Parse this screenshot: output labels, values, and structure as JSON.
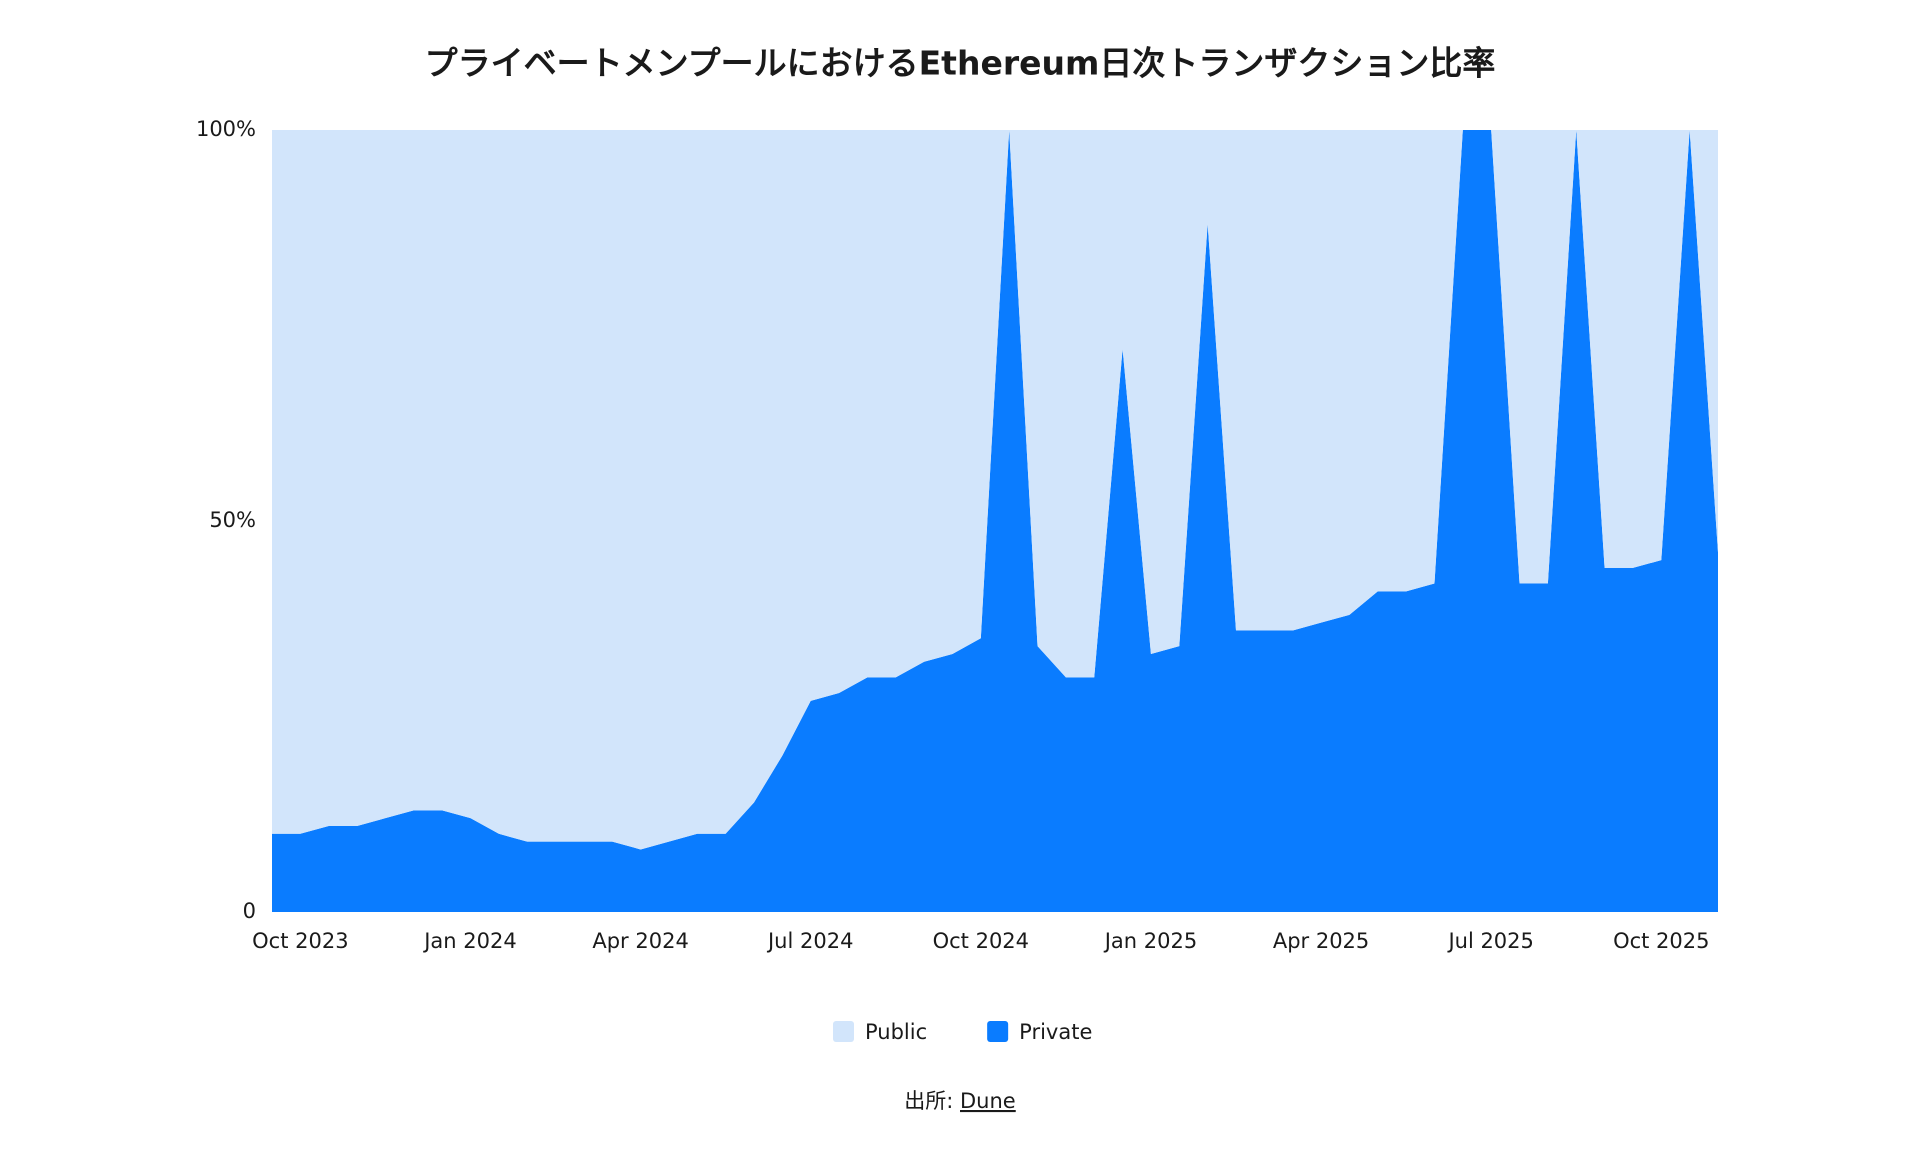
{
  "chart_data": {
    "type": "stacked_area",
    "title": "プライベートメンプールにおけるEthereum日次トランザクション比率",
    "categories": [
      null,
      "Oct 2023",
      null,
      null,
      null,
      null,
      null,
      "Jan 2024",
      null,
      null,
      null,
      null,
      null,
      "Apr 2024",
      null,
      null,
      null,
      null,
      null,
      "Jul 2024",
      null,
      null,
      null,
      null,
      null,
      "Oct 2024",
      null,
      null,
      null,
      null,
      null,
      "Jan 2025",
      null,
      null,
      null,
      null,
      null,
      "Apr 2025",
      null,
      null,
      null,
      null,
      null,
      "Jul 2025",
      null,
      null,
      null,
      null,
      null,
      "Oct 2025",
      null,
      null
    ],
    "series": [
      {
        "name": "Private",
        "color": "#0a7cff",
        "values": [
          10,
          10,
          11,
          11,
          12,
          13,
          13,
          12,
          10,
          9,
          9,
          9,
          9,
          8,
          9,
          10,
          10,
          14,
          20,
          27,
          28,
          30,
          30,
          32,
          33,
          35,
          100,
          34,
          30,
          30,
          72,
          33,
          34,
          88,
          36,
          36,
          36,
          37,
          38,
          41,
          41,
          42,
          100,
          100,
          42,
          42,
          100,
          44,
          44,
          45,
          100,
          46
        ]
      },
      {
        "name": "Public",
        "color": "#d2e5fb",
        "values": [
          90,
          90,
          89,
          89,
          88,
          87,
          87,
          88,
          90,
          91,
          91,
          91,
          91,
          92,
          91,
          90,
          90,
          86,
          80,
          73,
          72,
          70,
          70,
          68,
          67,
          65,
          0,
          66,
          70,
          70,
          28,
          67,
          66,
          12,
          64,
          64,
          64,
          63,
          62,
          59,
          59,
          58,
          0,
          0,
          58,
          58,
          0,
          56,
          56,
          55,
          0,
          54
        ]
      }
    ],
    "ylim": [
      0,
      100
    ],
    "yticks": [
      0,
      {
        "value": 50,
        "label": "50%"
      },
      {
        "value": 100,
        "label": "100%"
      }
    ],
    "source": {
      "label": "出所:",
      "text": "Dune"
    }
  }
}
